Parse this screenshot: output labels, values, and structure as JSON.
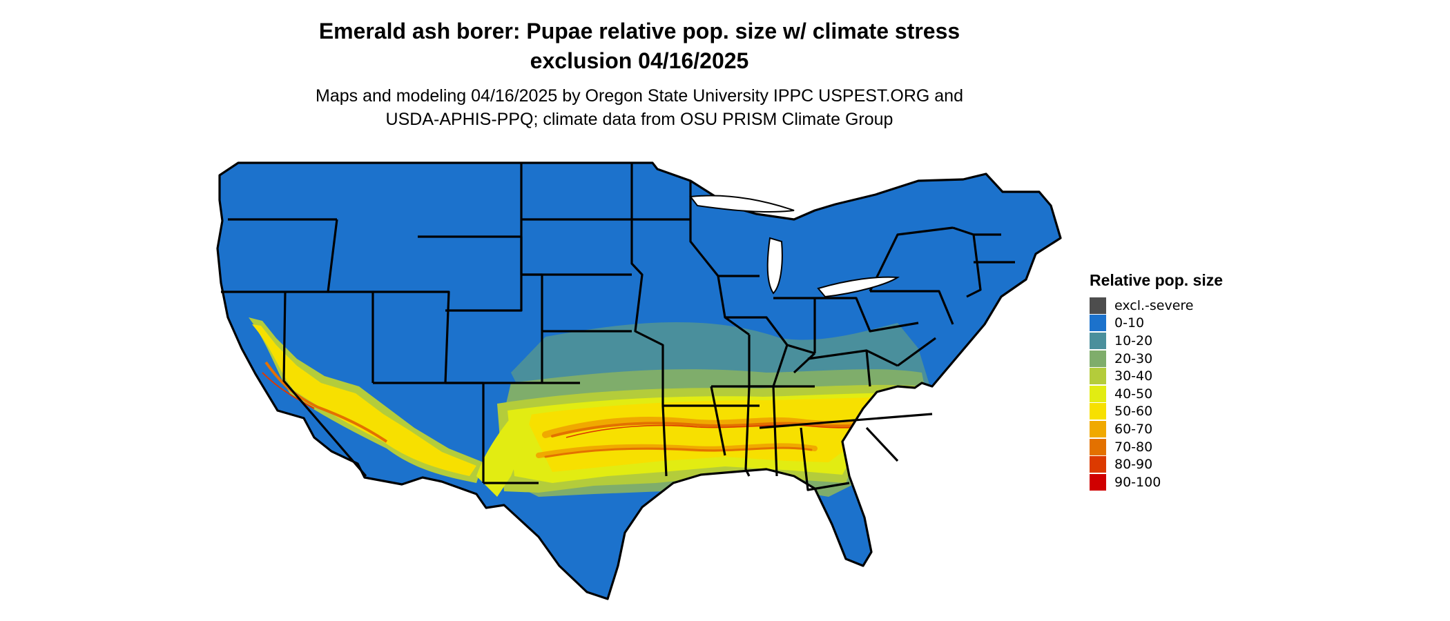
{
  "map": {
    "title": "Emerald ash borer: Pupae relative pop. size w/ climate stress\nexclusion 04/16/2025",
    "subtitle": "Maps and modeling 04/16/2025 by Oregon State University IPPC USPEST.ORG and\nUSDA-APHIS-PPQ; climate data from OSU PRISM Climate Group",
    "legend": {
      "title": "Relative pop. size",
      "items": [
        {
          "label": "excl.-severe",
          "color": "#4d4d4d"
        },
        {
          "label": "0-10",
          "color": "#1c72cc"
        },
        {
          "label": "10-20",
          "color": "#4a8f9c"
        },
        {
          "label": "20-30",
          "color": "#7fad6b"
        },
        {
          "label": "30-40",
          "color": "#b4cc3b"
        },
        {
          "label": "40-50",
          "color": "#e2ec12"
        },
        {
          "label": "50-60",
          "color": "#f7e000"
        },
        {
          "label": "60-70",
          "color": "#f0a900"
        },
        {
          "label": "70-80",
          "color": "#e37100"
        },
        {
          "label": "80-90",
          "color": "#dc3a00"
        },
        {
          "label": "90-100",
          "color": "#d00000"
        }
      ]
    }
  }
}
